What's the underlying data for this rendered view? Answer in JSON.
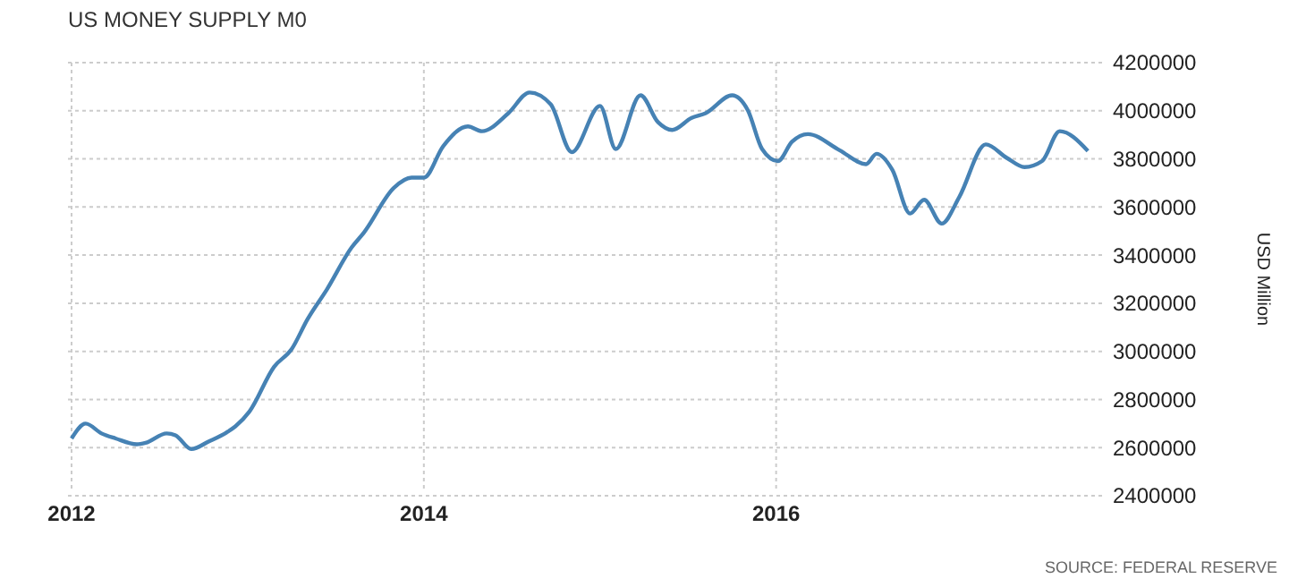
{
  "chart_data": {
    "type": "line",
    "title": "US MONEY SUPPLY M0",
    "ylabel": "USD Million",
    "annotations": [
      "SOURCE: FEDERAL RESERVE"
    ],
    "x": [
      2012,
      2012.08,
      2012.17,
      2012.25,
      2012.37,
      2012.42,
      2012.54,
      2012.59,
      2012.68,
      2012.78,
      2012.88,
      2012.93,
      2013.01,
      2013.15,
      2013.25,
      2013.34,
      2013.45,
      2013.59,
      2013.66,
      2013.83,
      2013.93,
      2014.0,
      2014.11,
      2014.25,
      2014.33,
      2014.48,
      2014.6,
      2014.72,
      2014.84,
      2015.0,
      2015.09,
      2015.23,
      2015.33,
      2015.41,
      2015.52,
      2015.6,
      2015.75,
      2015.84,
      2015.92,
      2016.01,
      2016.09,
      2016.18,
      2016.36,
      2016.51,
      2016.57,
      2016.66,
      2016.76,
      2016.84,
      2016.94,
      2017.04,
      2017.19,
      2017.31,
      2017.41,
      2017.51,
      2017.61,
      2017.77
    ],
    "series": [
      {
        "color": "#4682b4",
        "values": [
          2638000,
          2700000,
          2659000,
          2638000,
          2614000,
          2620000,
          2659000,
          2651000,
          2594000,
          2626000,
          2663000,
          2688000,
          2750000,
          2936000,
          3010000,
          3134000,
          3258000,
          3432000,
          3494000,
          3680000,
          3722000,
          3722000,
          3853000,
          3935000,
          3915000,
          3990000,
          4076000,
          4027000,
          3828000,
          4020000,
          3841000,
          4064000,
          3952000,
          3920000,
          3970000,
          3990000,
          4064000,
          4001000,
          3841000,
          3791000,
          3871000,
          3903000,
          3836000,
          3778000,
          3821000,
          3754000,
          3573000,
          3630000,
          3531000,
          3642000,
          3860000,
          3804000,
          3766000,
          3791000,
          3915000,
          3833000
        ]
      }
    ],
    "xlim": [
      2012,
      2017.83
    ],
    "xticks": [
      2012,
      2014,
      2016
    ],
    "ylim": [
      2400000,
      4200000
    ],
    "yticks": [
      2400000,
      2600000,
      2800000,
      3000000,
      3200000,
      3400000,
      3600000,
      3800000,
      4000000,
      4200000
    ],
    "grid": true,
    "line_style": "solid",
    "marker": "none"
  }
}
